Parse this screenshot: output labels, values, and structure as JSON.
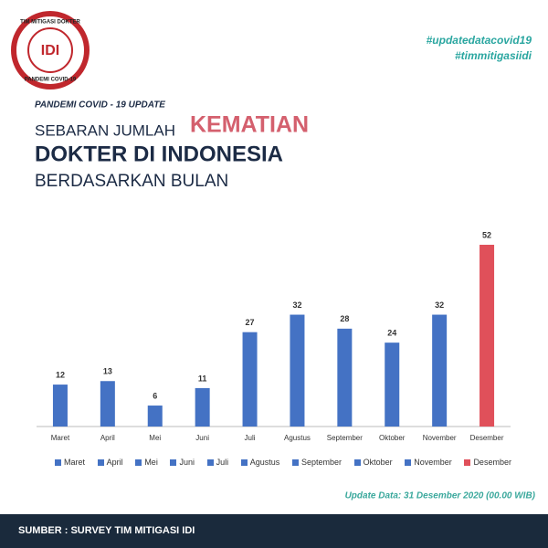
{
  "logo": {
    "top": "TIM MITIGASI DOKTER",
    "bottom": "PANDEMI COVID-19",
    "center": "IDI"
  },
  "hashtags": [
    "#updatedatacovid19",
    "#timmitigasiidi"
  ],
  "kicker": "PANDEMI COVID - 19 UPDATE",
  "headline": {
    "line1": "SEBARAN JUMLAH",
    "highlight": "KEMATIAN",
    "line2": "DOKTER DI INDONESIA",
    "line3": "BERDASARKAN BULAN"
  },
  "chart_data": {
    "type": "bar",
    "categories": [
      "Maret",
      "April",
      "Mei",
      "Juni",
      "Juli",
      "Agustus",
      "September",
      "Oktober",
      "November",
      "Desember"
    ],
    "values": [
      12,
      13,
      6,
      11,
      27,
      32,
      28,
      24,
      32,
      52
    ],
    "colors": [
      "#4472c4",
      "#4472c4",
      "#4472c4",
      "#4472c4",
      "#4472c4",
      "#4472c4",
      "#4472c4",
      "#4472c4",
      "#4472c4",
      "#e0505a"
    ],
    "legend": "bottom"
  },
  "update_note": "Update Data: 31 Desember 2020 (00.00 WIB)",
  "footer": "SUMBER : SURVEY TIM MITIGASI IDI"
}
